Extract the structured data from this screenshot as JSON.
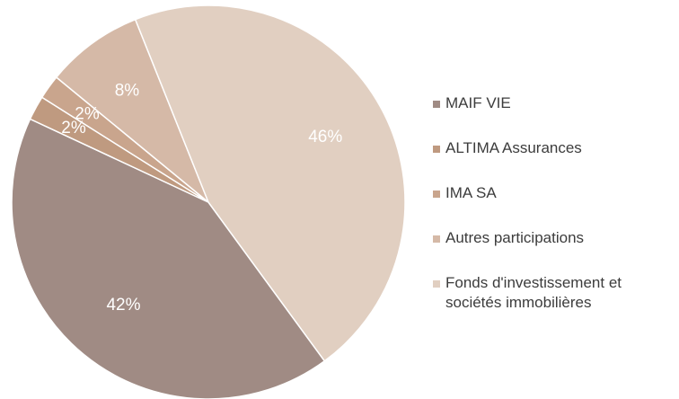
{
  "chart_data": {
    "type": "pie",
    "categories": [
      "MAIF VIE",
      "ALTIMA Assurances",
      "IMA SA",
      "Autres participations",
      "Fonds d'investissement et sociétés immobilières"
    ],
    "values": [
      42,
      2,
      2,
      8,
      46
    ],
    "value_labels": [
      "42%",
      "2%",
      "2%",
      "8%",
      "46%"
    ],
    "colors": [
      "#a08b84",
      "#bf9a80",
      "#c9a58d",
      "#d5b9a7",
      "#e1cfc1"
    ]
  }
}
